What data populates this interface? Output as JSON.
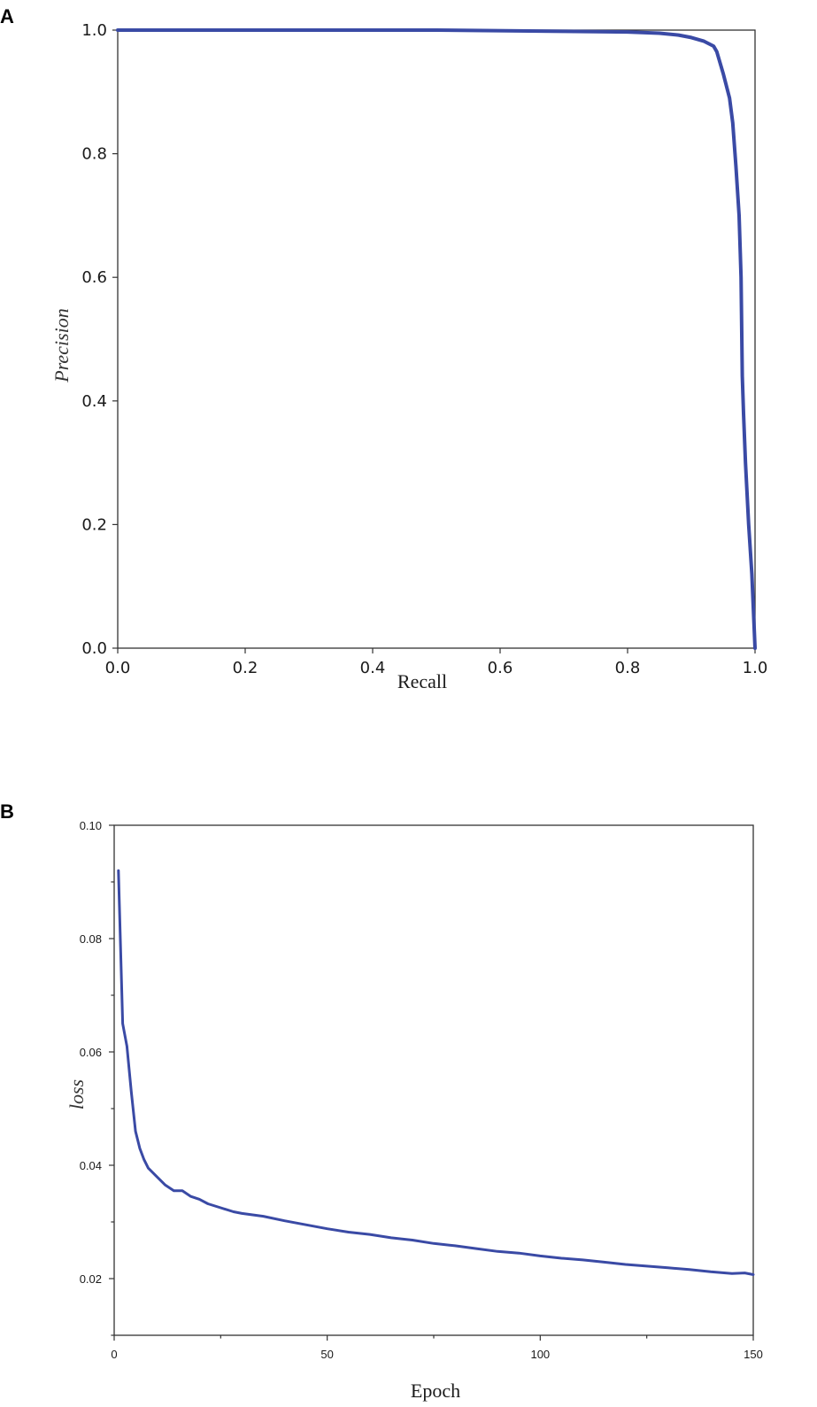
{
  "chart_data": [
    {
      "panel": "A",
      "type": "line",
      "title": "",
      "xlabel": "Recall",
      "ylabel": "Precision",
      "xlim": [
        0.0,
        1.0
      ],
      "ylim": [
        0.0,
        1.0
      ],
      "xticks": [
        0.0,
        0.2,
        0.4,
        0.6,
        0.8,
        1.0
      ],
      "xtick_labels": [
        "0.0",
        "0.2",
        "0.4",
        "0.6",
        "0.8",
        "1.0"
      ],
      "yticks": [
        0.0,
        0.2,
        0.4,
        0.6,
        0.8,
        1.0
      ],
      "ytick_labels": [
        "0.0",
        "0.2",
        "0.4",
        "0.6",
        "0.8",
        "1.0"
      ],
      "grid": false,
      "color": "#3a4aa5",
      "series": [
        {
          "x": [
            0.0,
            0.1,
            0.3,
            0.5,
            0.7,
            0.8,
            0.85,
            0.88,
            0.9,
            0.92,
            0.935,
            0.94,
            0.95,
            0.96,
            0.965,
            0.97,
            0.975,
            0.978,
            0.98,
            0.982,
            0.985,
            0.99,
            0.995,
            1.0
          ],
          "y": [
            1.0,
            1.0,
            1.0,
            1.0,
            0.998,
            0.997,
            0.995,
            0.992,
            0.988,
            0.982,
            0.974,
            0.965,
            0.93,
            0.89,
            0.85,
            0.78,
            0.7,
            0.6,
            0.44,
            0.38,
            0.3,
            0.2,
            0.12,
            0.0
          ]
        }
      ]
    },
    {
      "panel": "B",
      "type": "line",
      "title": "",
      "xlabel": "Epoch",
      "ylabel": "loss",
      "xlim": [
        0,
        150
      ],
      "ylim": [
        0.01,
        0.1
      ],
      "xticks": [
        0,
        50,
        100,
        150
      ],
      "xtick_labels": [
        "0",
        "50",
        "100",
        "150"
      ],
      "yticks": [
        0.02,
        0.04,
        0.06,
        0.08,
        0.1
      ],
      "ytick_labels": [
        "0.02",
        "0.04",
        "0.06",
        "0.08",
        "0.10"
      ],
      "grid": false,
      "color": "#3a4aa5",
      "series": [
        {
          "x": [
            1,
            2,
            3,
            4,
            5,
            6,
            7,
            8,
            10,
            12,
            14,
            16,
            18,
            20,
            22,
            25,
            28,
            30,
            35,
            40,
            45,
            50,
            55,
            60,
            65,
            70,
            75,
            80,
            85,
            90,
            95,
            100,
            105,
            110,
            115,
            120,
            125,
            130,
            135,
            140,
            145,
            148,
            150
          ],
          "y": [
            0.092,
            0.065,
            0.061,
            0.053,
            0.046,
            0.043,
            0.041,
            0.0395,
            0.038,
            0.0365,
            0.0355,
            0.0355,
            0.0345,
            0.034,
            0.0332,
            0.0325,
            0.0318,
            0.0315,
            0.031,
            0.0302,
            0.0295,
            0.0288,
            0.0282,
            0.0278,
            0.0272,
            0.0268,
            0.0262,
            0.0258,
            0.0253,
            0.0248,
            0.0245,
            0.024,
            0.0236,
            0.0233,
            0.0229,
            0.0225,
            0.0222,
            0.0219,
            0.0216,
            0.0212,
            0.0209,
            0.021,
            0.0207
          ]
        }
      ]
    }
  ],
  "panel_labels": [
    "A",
    "B"
  ]
}
